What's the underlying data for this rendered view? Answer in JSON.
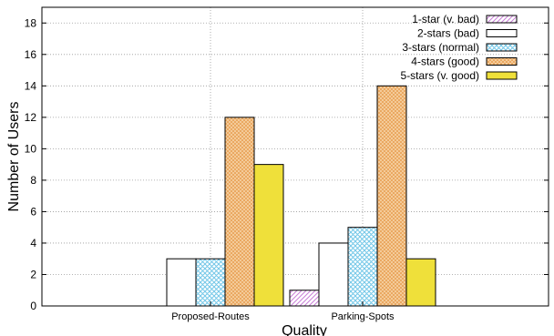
{
  "chart_data": {
    "type": "bar",
    "title": "",
    "xlabel": "Quality",
    "ylabel": "Number of Users",
    "ylim": [
      0,
      19
    ],
    "yticks": [
      0,
      2,
      4,
      6,
      8,
      10,
      12,
      14,
      16,
      18
    ],
    "grid": true,
    "legend_position": "top-right",
    "categories": [
      "Proposed-Routes",
      "Parking-Spots"
    ],
    "series": [
      {
        "name": "1-star (v. bad)",
        "values": [
          0,
          1
        ],
        "color": "#c87fd8",
        "pattern": "diag"
      },
      {
        "name": "2-stars (bad)",
        "values": [
          3,
          4
        ],
        "color": "#ffffff",
        "pattern": "solid"
      },
      {
        "name": "3-stars (normal)",
        "values": [
          3,
          5
        ],
        "color": "#73c7e8",
        "pattern": "grid"
      },
      {
        "name": "4-stars (good)",
        "values": [
          12,
          14
        ],
        "color": "#f0b36a",
        "pattern": "cross"
      },
      {
        "name": "5-stars (v. good)",
        "values": [
          9,
          3
        ],
        "color": "#efe03a",
        "pattern": "solid"
      }
    ]
  }
}
